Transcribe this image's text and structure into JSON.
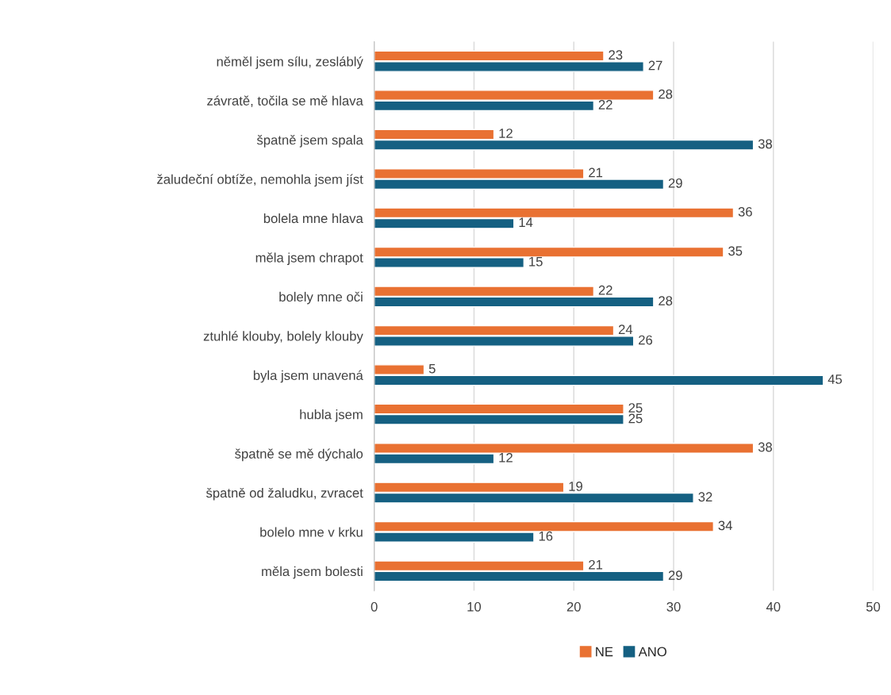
{
  "chart_data": {
    "type": "bar",
    "orientation": "horizontal",
    "categories": [
      "něměl jsem sílu, zesláblý",
      "závratě, točila se mě hlava",
      "špatně jsem spala",
      "žaludeční obtíže, nemohla jsem jíst",
      "bolela mne hlava",
      "měla jsem chrapot",
      "bolely mne oči",
      "ztuhlé klouby, bolely klouby",
      "byla jsem unavená",
      "hubla jsem",
      "špatně se mě dýchalo",
      "špatně od žaludku, zvracet",
      "bolelo mne v krku",
      "měla jsem bolesti"
    ],
    "series": [
      {
        "name": "NE",
        "color": "#e97132",
        "values": [
          23,
          28,
          12,
          21,
          36,
          35,
          22,
          24,
          5,
          25,
          38,
          19,
          34,
          21
        ]
      },
      {
        "name": "ANO",
        "color": "#156082",
        "values": [
          27,
          22,
          38,
          29,
          14,
          15,
          28,
          26,
          45,
          25,
          12,
          32,
          16,
          29
        ]
      }
    ],
    "xlim": [
      0,
      50
    ],
    "xticks": [
      0,
      10,
      20,
      30,
      40,
      50
    ],
    "grid": "x",
    "legend": "bottom",
    "data_labels": true
  }
}
